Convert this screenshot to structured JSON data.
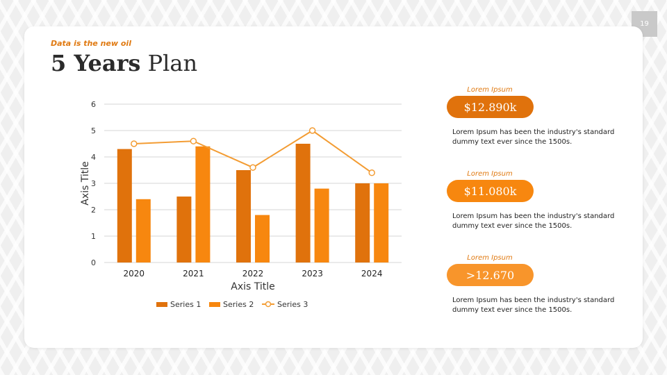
{
  "page_number": "19",
  "eyebrow": "Data is the new oil",
  "title": {
    "bold": "5 Years",
    "regular": "Plan"
  },
  "chart_data": {
    "type": "bar",
    "categories": [
      "2020",
      "2021",
      "2022",
      "2023",
      "2024"
    ],
    "series": [
      {
        "name": "Series 1",
        "type": "bar",
        "values": [
          4.3,
          2.5,
          3.5,
          4.5,
          3.0
        ],
        "color": "#e0720c"
      },
      {
        "name": "Series 2",
        "type": "bar",
        "values": [
          2.4,
          4.4,
          1.8,
          2.8,
          3.0
        ],
        "color": "#f7870f"
      },
      {
        "name": "Series 3",
        "type": "line",
        "values": [
          4.5,
          4.6,
          3.6,
          5.0,
          3.4
        ],
        "color": "#f39c33"
      }
    ],
    "ylim": [
      0,
      6
    ],
    "yticks": [
      "0",
      "1",
      "2",
      "3",
      "4",
      "5",
      "6"
    ],
    "xlabel": "Axis Title",
    "ylabel": "Axis Title",
    "grid": true,
    "legend": "bottom"
  },
  "stats": [
    {
      "label": "Lorem Ipsum",
      "value": "$12.890k",
      "color": "#e0720c",
      "text": "Lorem Ipsum has been the industry's standard dummy text ever since the 1500s."
    },
    {
      "label": "Lorem Ipsum",
      "value": "$11.080k",
      "color": "#f7870f",
      "text": "Lorem Ipsum has been the industry's standard dummy text ever since the 1500s."
    },
    {
      "label": "Lorem Ipsum",
      "value": ">12.670",
      "color": "#f8952b",
      "text": "Lorem Ipsum has been the industry's standard dummy text ever since the 1500s."
    }
  ]
}
